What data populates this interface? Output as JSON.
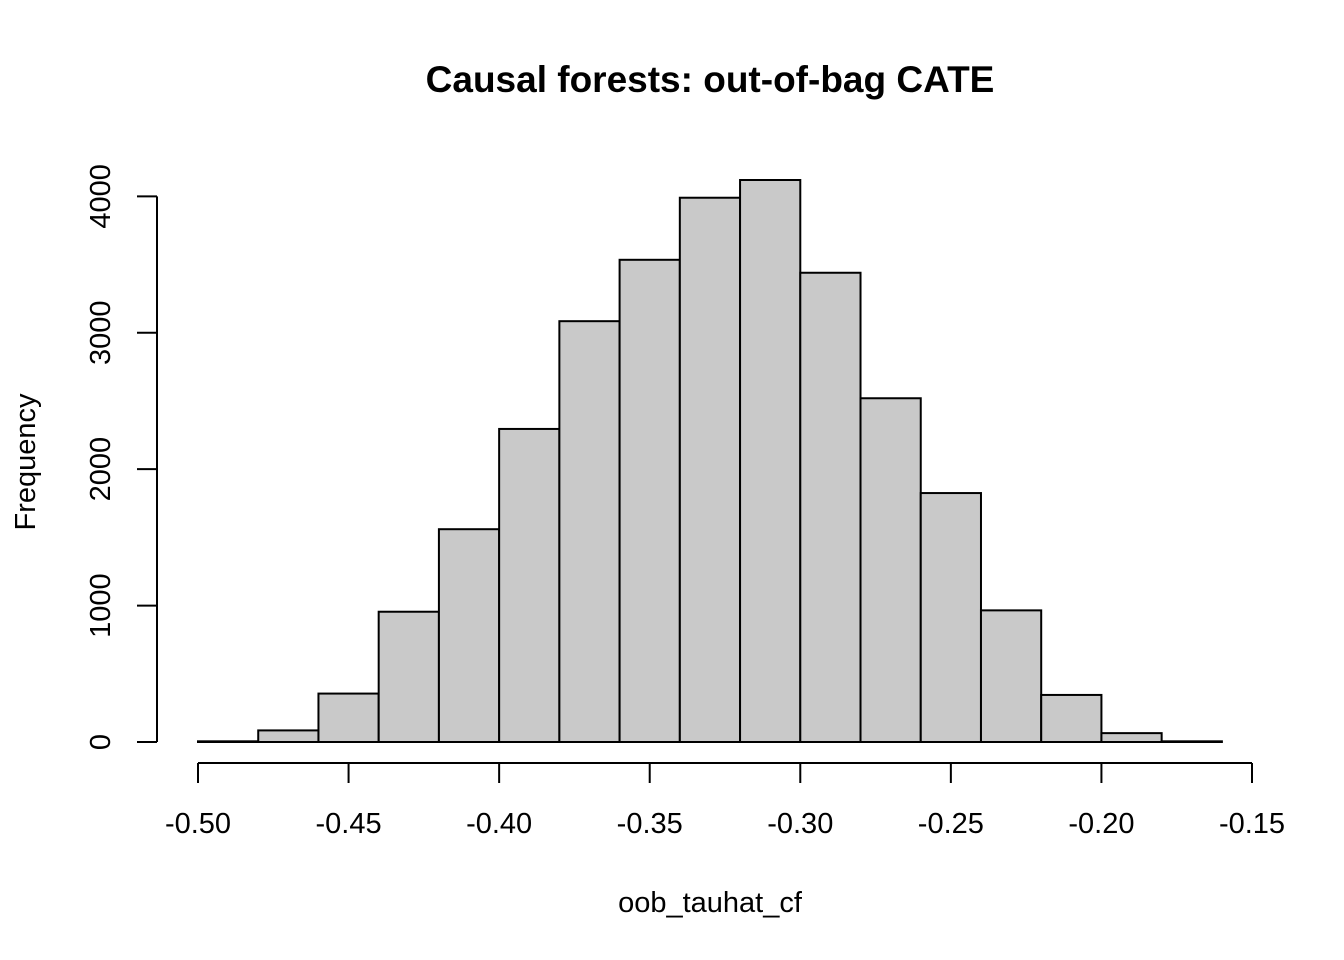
{
  "chart_data": {
    "type": "bar",
    "title": "Causal forests: out-of-bag CATE",
    "xlabel": "oob_tauhat_cf",
    "ylabel": "Frequency",
    "bin_edges": [
      -0.5,
      -0.48,
      -0.46,
      -0.44,
      -0.42,
      -0.4,
      -0.38,
      -0.36,
      -0.34,
      -0.32,
      -0.3,
      -0.28,
      -0.26,
      -0.24,
      -0.22,
      -0.2,
      -0.18,
      -0.16
    ],
    "values": [
      5,
      85,
      355,
      955,
      1560,
      2295,
      3085,
      3535,
      3990,
      4120,
      3440,
      2520,
      1825,
      965,
      345,
      65,
      5
    ],
    "xlim": [
      -0.5,
      -0.15
    ],
    "ylim": [
      0,
      4120
    ],
    "x_ticks": [
      -0.5,
      -0.45,
      -0.4,
      -0.35,
      -0.3,
      -0.25,
      -0.2,
      -0.15
    ],
    "x_tick_labels": [
      "-0.50",
      "-0.45",
      "-0.40",
      "-0.35",
      "-0.30",
      "-0.25",
      "-0.20",
      "-0.15"
    ],
    "y_ticks": [
      0,
      1000,
      2000,
      3000,
      4000
    ],
    "y_tick_labels": [
      "0",
      "1000",
      "2000",
      "3000",
      "4000"
    ],
    "grid": false,
    "bar_color": "#c9c9c9"
  }
}
